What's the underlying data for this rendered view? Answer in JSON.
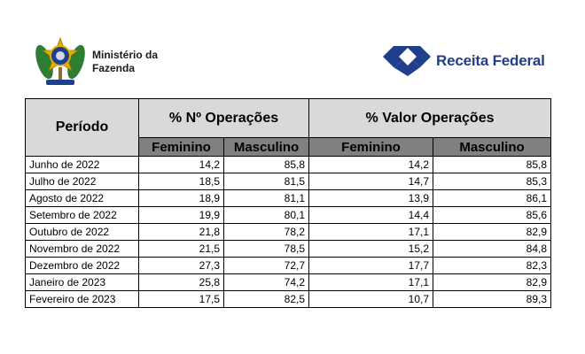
{
  "header": {
    "ministry": "Ministério da Fazenda",
    "agency": "Receita Federal"
  },
  "table": {
    "columns": {
      "period": "Período",
      "group_count": "% Nº Operações",
      "group_value": "% Valor Operações",
      "female": "Feminino",
      "male": "Masculino"
    },
    "rows": [
      [
        "Junho de 2022",
        "14,2",
        "85,8",
        "14,2",
        "85,8"
      ],
      [
        "Julho de 2022",
        "18,5",
        "81,5",
        "14,7",
        "85,3"
      ],
      [
        "Agosto de 2022",
        "18,9",
        "81,1",
        "13,9",
        "86,1"
      ],
      [
        "Setembro de 2022",
        "19,9",
        "80,1",
        "14,4",
        "85,6"
      ],
      [
        "Outubro de 2022",
        "21,8",
        "78,2",
        "17,1",
        "82,9"
      ],
      [
        "Novembro de 2022",
        "21,5",
        "78,5",
        "15,2",
        "84,8"
      ],
      [
        "Dezembro de 2022",
        "27,3",
        "72,7",
        "17,7",
        "82,3"
      ],
      [
        "Janeiro de 2023",
        "25,8",
        "74,2",
        "17,1",
        "82,9"
      ],
      [
        "Fevereiro de 2023",
        "17,5",
        "82,5",
        "10,7",
        "89,3"
      ]
    ]
  },
  "colors": {
    "header_bg": "#d9d9d9",
    "subheader_bg": "#808080",
    "agency_blue": "#1f3e8c"
  },
  "icons": {
    "ministry": "brazil-coat-of-arms-icon",
    "agency": "receita-federal-logo-icon"
  }
}
